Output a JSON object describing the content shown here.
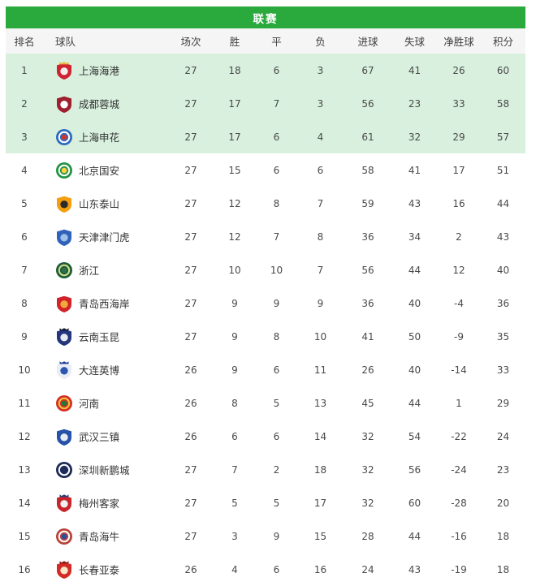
{
  "title": "联赛",
  "colors": {
    "header_green": "#2aa93c",
    "top3_row_bg": "#d8f0dd",
    "header_row_bg": "#f4f5f4",
    "team_text": "#333333",
    "number_text": "#4a4a4a"
  },
  "columns": [
    "排名",
    "球队",
    "场次",
    "胜",
    "平",
    "负",
    "进球",
    "失球",
    "净胜球",
    "积分"
  ],
  "top_highlight_count": 3,
  "teams": [
    {
      "rank": 1,
      "name": "上海海港",
      "played": 27,
      "win": 18,
      "draw": 6,
      "loss": 3,
      "gf": 67,
      "ga": 41,
      "gd": 26,
      "pts": 60,
      "logo": {
        "shape": "shield",
        "c1": "#cf2232",
        "c2": "#f3eee8",
        "c3": "#e8b33a"
      }
    },
    {
      "rank": 2,
      "name": "成都蓉城",
      "played": 27,
      "win": 17,
      "draw": 7,
      "loss": 3,
      "gf": 56,
      "ga": 23,
      "gd": 33,
      "pts": 58,
      "logo": {
        "shape": "shield",
        "c1": "#9e1f2e",
        "c2": "#ffffff"
      }
    },
    {
      "rank": 3,
      "name": "上海申花",
      "played": 27,
      "win": 17,
      "draw": 6,
      "loss": 4,
      "gf": 61,
      "ga": 32,
      "gd": 29,
      "pts": 57,
      "logo": {
        "shape": "circle",
        "c1": "#2f6bbf",
        "c2": "#ffffff",
        "c3": "#d0342c"
      }
    },
    {
      "rank": 4,
      "name": "北京国安",
      "played": 27,
      "win": 15,
      "draw": 6,
      "loss": 6,
      "gf": 58,
      "ga": 41,
      "gd": 17,
      "pts": 51,
      "logo": {
        "shape": "circle",
        "c1": "#249446",
        "c2": "#ffffff",
        "c3": "#ffd23f"
      }
    },
    {
      "rank": 5,
      "name": "山东泰山",
      "played": 27,
      "win": 12,
      "draw": 8,
      "loss": 7,
      "gf": 59,
      "ga": 43,
      "gd": 16,
      "pts": 44,
      "logo": {
        "shape": "shield",
        "c1": "#f59f0f",
        "c2": "#2b2b2b"
      }
    },
    {
      "rank": 6,
      "name": "天津津门虎",
      "played": 27,
      "win": 12,
      "draw": 7,
      "loss": 8,
      "gf": 36,
      "ga": 34,
      "gd": 2,
      "pts": 43,
      "logo": {
        "shape": "shield",
        "c1": "#2f62b8",
        "c2": "#9fc0e8"
      }
    },
    {
      "rank": 7,
      "name": "浙江",
      "played": 27,
      "win": 10,
      "draw": 10,
      "loss": 7,
      "gf": 56,
      "ga": 44,
      "gd": 12,
      "pts": 40,
      "logo": {
        "shape": "circle",
        "c1": "#1f5c3a",
        "c2": "#cfe08a",
        "c3": "#2c6e49"
      }
    },
    {
      "rank": 8,
      "name": "青岛西海岸",
      "played": 27,
      "win": 9,
      "draw": 9,
      "loss": 9,
      "gf": 36,
      "ga": 40,
      "gd": -4,
      "pts": 36,
      "logo": {
        "shape": "shield",
        "c1": "#d2232a",
        "c2": "#f2a93b"
      }
    },
    {
      "rank": 9,
      "name": "云南玉昆",
      "played": 27,
      "win": 9,
      "draw": 8,
      "loss": 10,
      "gf": 41,
      "ga": 50,
      "gd": -9,
      "pts": 35,
      "logo": {
        "shape": "shield",
        "c1": "#24367d",
        "c2": "#e8ebf2",
        "c3": "#141b2e"
      }
    },
    {
      "rank": 10,
      "name": "大连英博",
      "played": 26,
      "win": 9,
      "draw": 6,
      "loss": 11,
      "gf": 26,
      "ga": 40,
      "gd": -14,
      "pts": 33,
      "logo": {
        "shape": "shield",
        "c1": "#e9eef6",
        "c2": "#2b56b0",
        "c3": "#1d3a8f"
      }
    },
    {
      "rank": 11,
      "name": "河南",
      "played": 26,
      "win": 8,
      "draw": 5,
      "loss": 13,
      "gf": 45,
      "ga": 44,
      "gd": 1,
      "pts": 29,
      "logo": {
        "shape": "circle",
        "c1": "#d43026",
        "c2": "#f3c53d",
        "c3": "#1f7a3c"
      }
    },
    {
      "rank": 12,
      "name": "武汉三镇",
      "played": 26,
      "win": 6,
      "draw": 6,
      "loss": 14,
      "gf": 32,
      "ga": 54,
      "gd": -22,
      "pts": 24,
      "logo": {
        "shape": "shield",
        "c1": "#2653a8",
        "c2": "#e8edf5"
      }
    },
    {
      "rank": 13,
      "name": "深圳新鹏城",
      "played": 27,
      "win": 7,
      "draw": 2,
      "loss": 18,
      "gf": 32,
      "ga": 56,
      "gd": -24,
      "pts": 23,
      "logo": {
        "shape": "circle",
        "c1": "#1c2b57",
        "c2": "#ffffff",
        "c3": "#1c2b57"
      }
    },
    {
      "rank": 14,
      "name": "梅州客家",
      "played": 27,
      "win": 5,
      "draw": 5,
      "loss": 17,
      "gf": 32,
      "ga": 60,
      "gd": -28,
      "pts": 20,
      "logo": {
        "shape": "shield",
        "c1": "#c8242c",
        "c2": "#f0f0f0",
        "c3": "#27407c"
      }
    },
    {
      "rank": 15,
      "name": "青岛海牛",
      "played": 27,
      "win": 3,
      "draw": 9,
      "loss": 15,
      "gf": 28,
      "ga": 44,
      "gd": -16,
      "pts": 18,
      "logo": {
        "shape": "circle",
        "c1": "#b8453c",
        "c2": "#ffffff",
        "c3": "#2b4ea0"
      }
    },
    {
      "rank": 16,
      "name": "长春亚泰",
      "played": 26,
      "win": 4,
      "draw": 6,
      "loss": 16,
      "gf": 24,
      "ga": 43,
      "gd": -19,
      "pts": 18,
      "logo": {
        "shape": "shield",
        "c1": "#d42b26",
        "c2": "#f5e9c8",
        "c3": "#8a1a16"
      }
    }
  ]
}
